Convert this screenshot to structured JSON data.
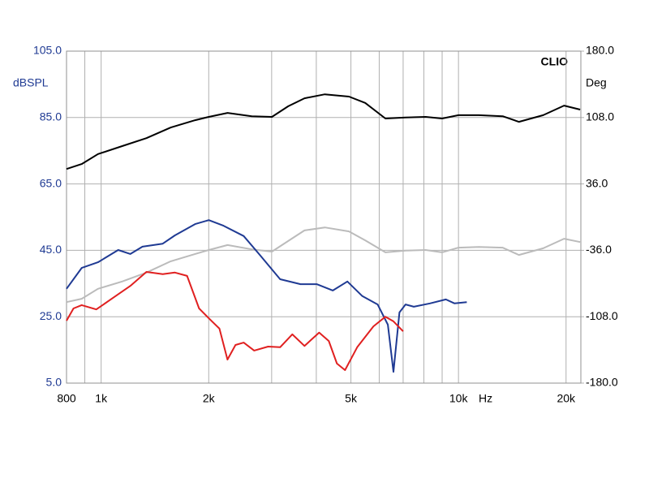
{
  "chart_data": {
    "type": "line",
    "brand": "CLIO",
    "ylabel": "dBSPL",
    "y2label": "Deg",
    "xlabel": "Hz",
    "xscale": "log",
    "grid": true,
    "xlim": [
      800,
      22000
    ],
    "xticks": [
      800,
      {
        "value": 1000,
        "label": "1k"
      },
      {
        "value": 2000,
        "label": "2k"
      },
      {
        "value": 5000,
        "label": "5k"
      },
      {
        "value": 10000,
        "label": "10k"
      },
      {
        "value": 20000,
        "label": "20k"
      }
    ],
    "xminor": [
      900,
      3000,
      4000,
      6000,
      7000,
      8000,
      9000
    ],
    "ylim": [
      5,
      105
    ],
    "yticks": [
      {
        "value": 5,
        "label": "5.0"
      },
      {
        "value": 25,
        "label": "25.0"
      },
      {
        "value": 45,
        "label": "45.0"
      },
      {
        "value": 65,
        "label": "65.0"
      },
      {
        "value": 85,
        "label": "85.0"
      },
      {
        "value": 105,
        "label": "105.0"
      }
    ],
    "y2lim": [
      -180,
      180
    ],
    "y2ticks": [
      {
        "value": -180,
        "label": "-180.0"
      },
      {
        "value": -108,
        "label": "-108.0"
      },
      {
        "value": -36,
        "label": "-36.0"
      },
      {
        "value": 36,
        "label": "36.0"
      },
      {
        "value": 108,
        "label": "108.0"
      },
      {
        "value": 180,
        "label": "180.0"
      }
    ],
    "series": [
      {
        "color": "#000000",
        "x": [
          800,
          882,
          980,
          1145,
          1339,
          1566,
          1832,
          2001,
          2258,
          2640,
          3006,
          3339,
          3707,
          4226,
          4939,
          5483,
          6245,
          7110,
          8095,
          8996,
          10000,
          11390,
          13300,
          14760,
          17260,
          19740,
          21900
        ],
        "values": [
          69.5,
          71.0,
          74.0,
          76.4,
          78.8,
          82.0,
          84.2,
          85.2,
          86.4,
          85.4,
          85.2,
          88.4,
          90.8,
          92.0,
          91.3,
          89.4,
          84.7,
          85.0,
          85.2,
          84.7,
          85.7,
          85.7,
          85.4,
          83.7,
          85.7,
          88.6,
          87.4
        ]
      },
      {
        "color": "#bbbbbb",
        "x": [
          800,
          882,
          980,
          1145,
          1339,
          1566,
          1832,
          2001,
          2258,
          2640,
          3006,
          3339,
          3707,
          4226,
          4939,
          5483,
          6245,
          7110,
          8095,
          8996,
          10000,
          11390,
          13300,
          14760,
          17260,
          19740,
          21900
        ],
        "values": [
          29.4,
          30.4,
          33.4,
          35.6,
          38.3,
          41.7,
          43.9,
          45.1,
          46.6,
          45.3,
          44.6,
          47.8,
          51.0,
          51.9,
          50.7,
          48.0,
          44.4,
          44.9,
          45.1,
          44.4,
          45.8,
          46.0,
          45.8,
          43.6,
          45.6,
          48.5,
          47.5
        ]
      },
      {
        "color": "#1f3a93",
        "x": [
          800,
          882,
          980,
          1116,
          1207,
          1305,
          1487,
          1608,
          1832,
          2001,
          2200,
          2506,
          2780,
          3168,
          3612,
          4010,
          4451,
          4888,
          5381,
          5940,
          6342,
          6578,
          6835,
          7110,
          7500,
          8320,
          9220,
          9750,
          10550
        ],
        "values": [
          33.4,
          39.7,
          41.4,
          45.1,
          43.9,
          46.1,
          47.0,
          49.5,
          52.9,
          54.1,
          52.4,
          49.3,
          43.6,
          36.3,
          34.8,
          34.8,
          32.9,
          35.6,
          31.2,
          28.7,
          22.6,
          8.4,
          26.3,
          28.7,
          28.0,
          29.0,
          30.2,
          29.0,
          29.4
        ]
      },
      {
        "color": "#e02020",
        "x": [
          800,
          837,
          882,
          969,
          1087,
          1207,
          1339,
          1487,
          1608,
          1740,
          1880,
          2033,
          2143,
          2257,
          2377,
          2506,
          2681,
          2932,
          3168,
          3426,
          3707,
          4075,
          4335,
          4568,
          4814,
          5205,
          5780,
          6245,
          6578,
          7000
        ],
        "values": [
          23.8,
          27.5,
          28.5,
          27.2,
          30.9,
          34.3,
          38.5,
          37.8,
          38.3,
          37.3,
          27.5,
          23.8,
          21.4,
          12.1,
          16.5,
          17.2,
          14.8,
          16.0,
          15.8,
          19.7,
          16.2,
          20.2,
          17.7,
          10.9,
          8.9,
          15.8,
          22.1,
          25.0,
          23.6,
          20.6
        ]
      }
    ]
  }
}
